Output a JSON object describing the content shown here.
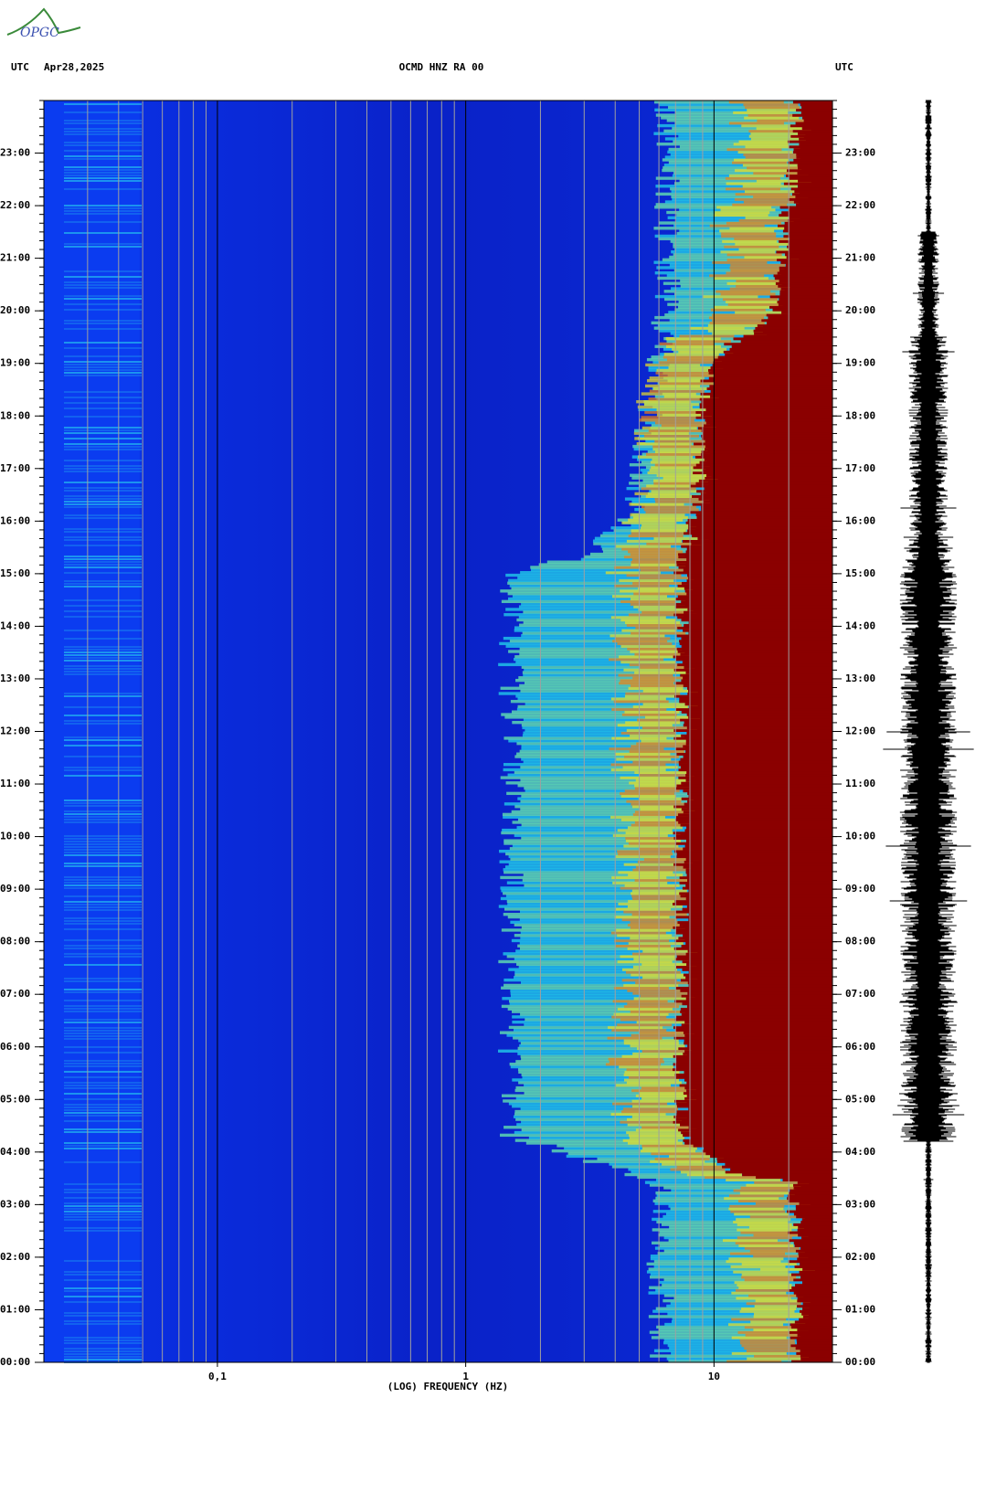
{
  "header": {
    "logo": "OPGC",
    "left_zone": "UTC",
    "date": "Apr28,2025",
    "station": "OCMD HNZ RA 00",
    "right_zone": "UTC"
  },
  "chart_data": {
    "type": "spectrogram",
    "xlabel": "(LOG) FREQUENCY (HZ)",
    "xscale": "log",
    "xlim": [
      0.02,
      30
    ],
    "xticks": [
      {
        "value": 0.1,
        "label": "0,1"
      },
      1,
      10
    ],
    "xgrid": [
      0.03,
      0.04,
      0.05,
      0.06,
      0.07,
      0.08,
      0.09,
      0.2,
      0.3,
      0.4,
      0.5,
      0.6,
      0.7,
      0.8,
      0.9,
      2,
      3,
      4,
      5,
      6,
      7,
      8,
      9,
      20
    ],
    "ylim": [
      0,
      24
    ],
    "yticks": [
      {
        "value": 0,
        "label": "00:00"
      },
      {
        "value": 1,
        "label": "01:00"
      },
      {
        "value": 2,
        "label": "02:00"
      },
      {
        "value": 3,
        "label": "03:00"
      },
      {
        "value": 4,
        "label": "04:00"
      },
      {
        "value": 5,
        "label": "05:00"
      },
      {
        "value": 6,
        "label": "06:00"
      },
      {
        "value": 7,
        "label": "07:00"
      },
      {
        "value": 8,
        "label": "08:00"
      },
      {
        "value": 9,
        "label": "09:00"
      },
      {
        "value": 10,
        "label": "10:00"
      },
      {
        "value": 11,
        "label": "11:00"
      },
      {
        "value": 12,
        "label": "12:00"
      },
      {
        "value": 13,
        "label": "13:00"
      },
      {
        "value": 14,
        "label": "14:00"
      },
      {
        "value": 15,
        "label": "15:00"
      },
      {
        "value": 16,
        "label": "16:00"
      },
      {
        "value": 17,
        "label": "17:00"
      },
      {
        "value": 18,
        "label": "18:00"
      },
      {
        "value": 19,
        "label": "19:00"
      },
      {
        "value": 20,
        "label": "20:00"
      },
      {
        "value": 21,
        "label": "21:00"
      },
      {
        "value": 22,
        "label": "22:00"
      },
      {
        "value": 23,
        "label": "23:00"
      }
    ]
  }
}
